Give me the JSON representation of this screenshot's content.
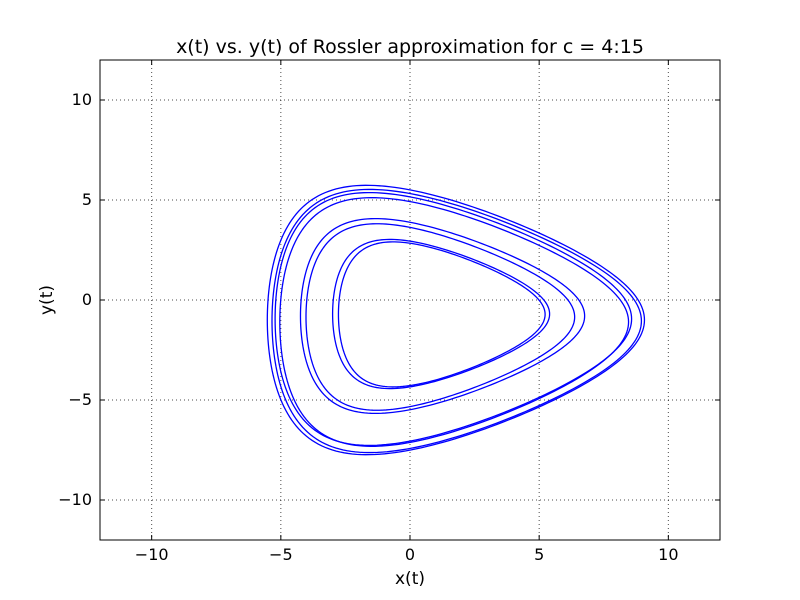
{
  "chart_data": {
    "type": "line",
    "title": "x(t) vs. y(t) of Rossler approximation for c = 4:15",
    "xlabel": "x(t)",
    "ylabel": "y(t)",
    "xlim": [
      -12,
      12
    ],
    "ylim": [
      -12,
      12
    ],
    "xticks": [
      -10,
      -5,
      0,
      5,
      10
    ],
    "yticks": [
      -10,
      -5,
      0,
      5,
      10
    ],
    "xtick_labels": [
      "−10",
      "−5",
      "0",
      "5",
      "10"
    ],
    "ytick_labels": [
      "−10",
      "−5",
      "0",
      "5",
      "10"
    ],
    "grid": true,
    "series_color": "#0000ff",
    "series": [
      {
        "loops": [
          {
            "cx": 0.7,
            "cy": -0.7,
            "rx": 4.2,
            "ry": 3.6
          },
          {
            "cx": 0.75,
            "cy": -0.72,
            "rx": 4.0,
            "ry": 3.5
          },
          {
            "cx": 0.6,
            "cy": -0.8,
            "rx": 5.5,
            "ry": 4.7
          },
          {
            "cx": 0.55,
            "cy": -0.85,
            "rx": 5.2,
            "ry": 4.5
          },
          {
            "cx": 0.9,
            "cy": -1.0,
            "rx": 7.3,
            "ry": 6.5
          },
          {
            "cx": 0.95,
            "cy": -1.05,
            "rx": 7.15,
            "ry": 6.35
          },
          {
            "cx": 0.85,
            "cy": -0.95,
            "rx": 6.9,
            "ry": 6.1
          },
          {
            "cx": 0.9,
            "cy": -1.1,
            "rx": 6.75,
            "ry": 6.0
          }
        ]
      }
    ]
  }
}
